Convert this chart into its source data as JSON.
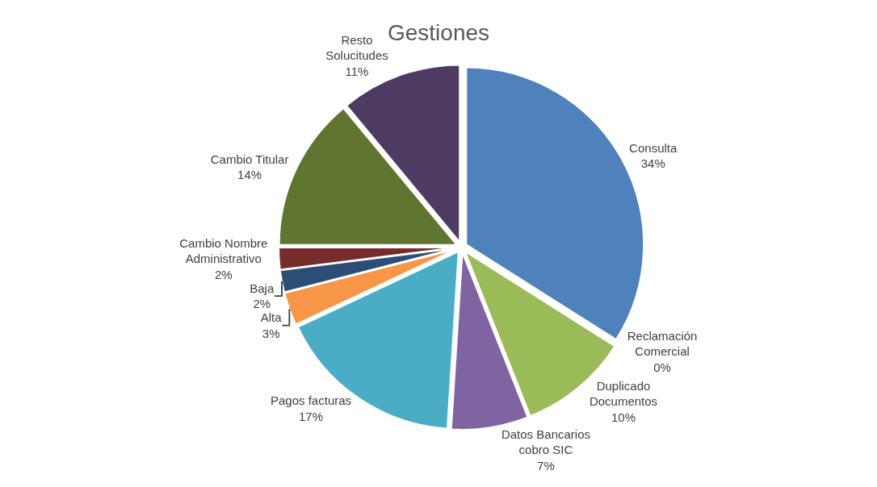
{
  "chart_data": {
    "type": "pie",
    "title": "Gestiones",
    "categories": [
      "Consulta",
      "Reclamación Comercial",
      "Duplicado Documentos",
      "Datos Bancarios cobro SIC",
      "Pagos facturas",
      "Alta",
      "Baja",
      "Cambio Nombre Administrativo",
      "Cambio Titular",
      "Resto Solucitudes"
    ],
    "values": [
      34,
      0,
      10,
      7,
      17,
      3,
      2,
      2,
      14,
      11
    ],
    "value_labels": [
      "34%",
      "0%",
      "10%",
      "7%",
      "17%",
      "3%",
      "2%",
      "2%",
      "14%",
      "11%"
    ],
    "colors": [
      "#4f81bd",
      "#c0504d",
      "#9bbb59",
      "#8064a2",
      "#4bacc6",
      "#f79646",
      "#2c4d75",
      "#772c2a",
      "#5f7530",
      "#4d3b62"
    ],
    "legend": false
  }
}
